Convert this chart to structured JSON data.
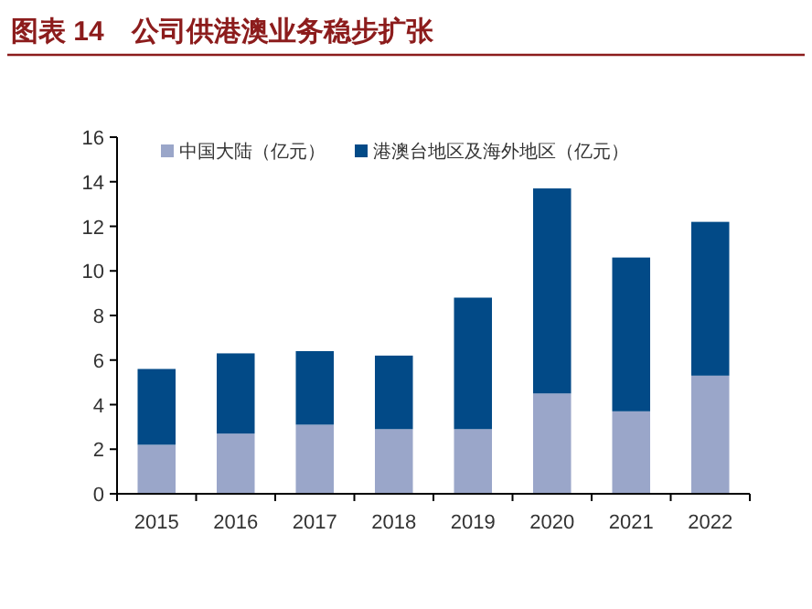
{
  "chart_data": {
    "type": "bar",
    "title": "图表 14　公司供港澳业务稳步扩张",
    "stacked": true,
    "categories": [
      "2015",
      "2016",
      "2017",
      "2018",
      "2019",
      "2020",
      "2021",
      "2022"
    ],
    "series": [
      {
        "name": "中国大陆（亿元）",
        "color": "#9aa6c9",
        "values": [
          2.2,
          2.7,
          3.1,
          2.9,
          2.9,
          4.5,
          3.7,
          5.3
        ]
      },
      {
        "name": "港澳台地区及海外地区（亿元）",
        "color": "#024a87",
        "values": [
          3.4,
          3.6,
          3.3,
          3.3,
          5.9,
          9.2,
          6.9,
          6.9
        ]
      }
    ],
    "ylim": [
      0,
      16
    ],
    "yticks": [
      0,
      2,
      4,
      6,
      8,
      10,
      12,
      14,
      16
    ],
    "legend": "top left"
  }
}
